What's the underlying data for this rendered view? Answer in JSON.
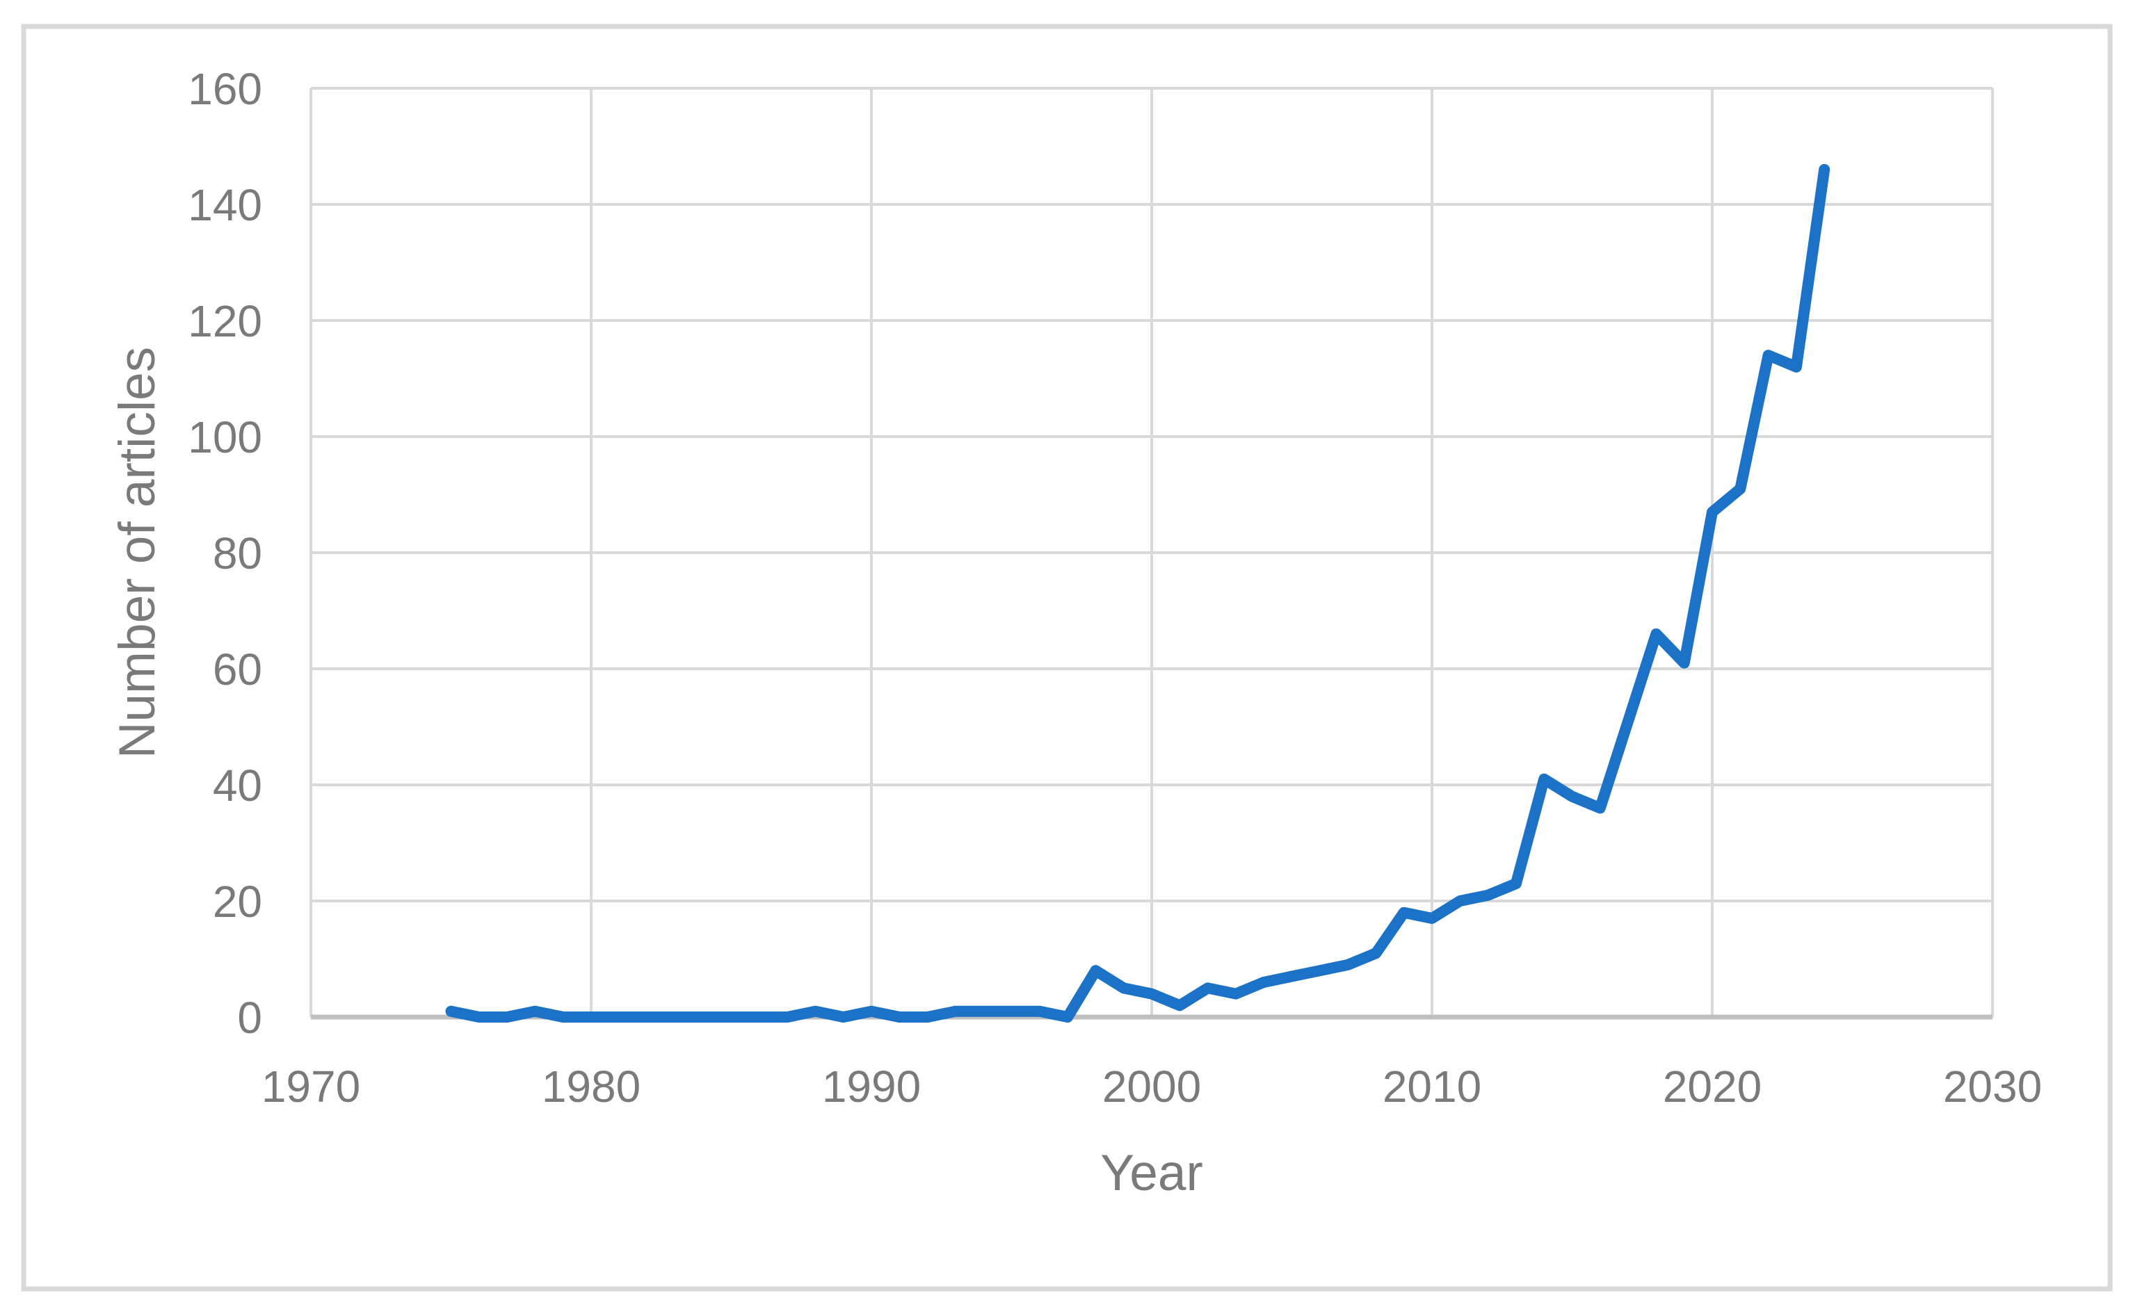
{
  "frame": {
    "background_color": "#FFFFFF",
    "border_color": "#D9D9D9"
  },
  "chart_data": {
    "type": "line",
    "title": "",
    "xlabel": "Year",
    "ylabel": "Number of articles",
    "xlim": [
      1970,
      2030
    ],
    "ylim": [
      0,
      160
    ],
    "x_ticks": [
      1970,
      1980,
      1990,
      2000,
      2010,
      2020,
      2030
    ],
    "y_ticks": [
      0,
      20,
      40,
      60,
      80,
      100,
      120,
      140,
      160
    ],
    "grid": true,
    "legend": false,
    "styles": {
      "line_color": "#1B72C6",
      "line_width": 16,
      "gridline_color": "#D9D9D9",
      "axis_line_color": "#BFBFBF",
      "label_color": "#7A7A7A"
    },
    "series": [
      {
        "name": "Number of articles",
        "x": [
          1975,
          1976,
          1977,
          1978,
          1979,
          1980,
          1981,
          1982,
          1983,
          1984,
          1985,
          1986,
          1987,
          1988,
          1989,
          1990,
          1991,
          1992,
          1993,
          1994,
          1995,
          1996,
          1997,
          1998,
          1999,
          2000,
          2001,
          2002,
          2003,
          2004,
          2005,
          2006,
          2007,
          2008,
          2009,
          2010,
          2011,
          2012,
          2013,
          2014,
          2015,
          2016,
          2017,
          2018,
          2019,
          2020,
          2021,
          2022,
          2023,
          2024
        ],
        "y": [
          1,
          0,
          0,
          1,
          0,
          0,
          0,
          0,
          0,
          0,
          0,
          0,
          0,
          1,
          0,
          1,
          0,
          0,
          1,
          1,
          1,
          1,
          0,
          8,
          5,
          4,
          2,
          5,
          4,
          6,
          7,
          8,
          9,
          11,
          18,
          17,
          20,
          21,
          23,
          41,
          38,
          36,
          51,
          66,
          61,
          87,
          91,
          114,
          112,
          146
        ]
      }
    ]
  }
}
